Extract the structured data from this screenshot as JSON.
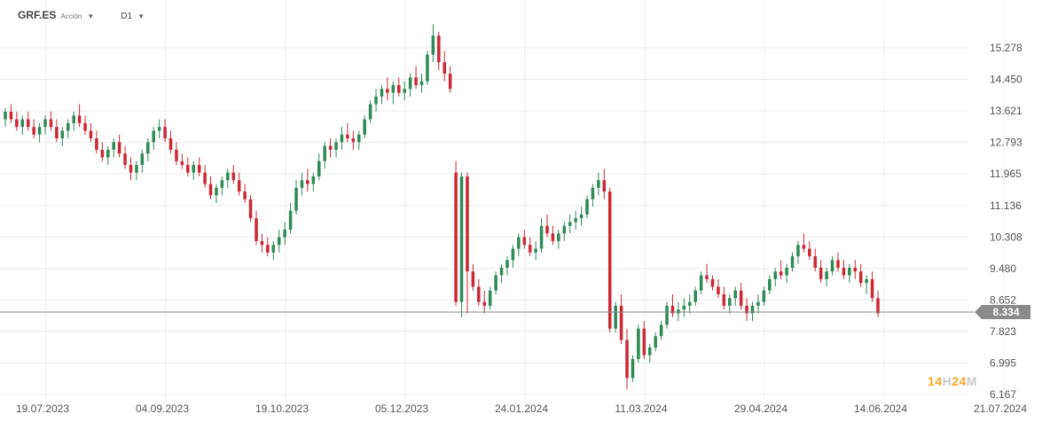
{
  "header": {
    "symbol": "GRF.ES",
    "security_type": "Acción",
    "timeframe": "D1"
  },
  "watermark": {
    "p1": "14",
    "p2": "H",
    "p3": "24",
    "p4": "M"
  },
  "colors": {
    "up": "#2e8b57",
    "down": "#cc2936",
    "grid": "#ececec",
    "price_line": "#888888",
    "price_tag": "#8a8a8a"
  },
  "chart_data": {
    "type": "candlestick",
    "title": "",
    "y_ticks": [
      "15.278",
      "14.450",
      "13.621",
      "12.793",
      "11.965",
      "11.136",
      "10.308",
      "9.480",
      "8.652",
      "7.823",
      "6.995",
      "6.167"
    ],
    "ylim": [
      6.167,
      15.278
    ],
    "x_ticks": [
      "19.07.2023",
      "04.09.2023",
      "19.10.2023",
      "05.12.2023",
      "24.01.2024",
      "11.03.2024",
      "29.04.2024",
      "14.06.2024",
      "21.07.2024"
    ],
    "current_price": "8.334",
    "candles": [
      [
        13.4,
        13.7,
        13.2,
        13.6
      ],
      [
        13.6,
        13.8,
        13.3,
        13.4
      ],
      [
        13.4,
        13.6,
        13.1,
        13.2
      ],
      [
        13.2,
        13.5,
        13.0,
        13.4
      ],
      [
        13.4,
        13.6,
        13.1,
        13.2
      ],
      [
        13.2,
        13.4,
        12.9,
        13.0
      ],
      [
        13.0,
        13.3,
        12.8,
        13.2
      ],
      [
        13.2,
        13.5,
        13.0,
        13.4
      ],
      [
        13.4,
        13.6,
        13.1,
        13.2
      ],
      [
        13.2,
        13.4,
        12.8,
        12.9
      ],
      [
        12.9,
        13.2,
        12.7,
        13.1
      ],
      [
        13.1,
        13.4,
        12.9,
        13.3
      ],
      [
        13.3,
        13.6,
        13.1,
        13.5
      ],
      [
        13.5,
        13.8,
        13.2,
        13.3
      ],
      [
        13.3,
        13.5,
        13.0,
        13.1
      ],
      [
        13.1,
        13.3,
        12.8,
        12.9
      ],
      [
        12.9,
        13.1,
        12.5,
        12.6
      ],
      [
        12.6,
        12.8,
        12.3,
        12.4
      ],
      [
        12.4,
        12.7,
        12.2,
        12.6
      ],
      [
        12.6,
        12.9,
        12.4,
        12.8
      ],
      [
        12.8,
        13.0,
        12.4,
        12.5
      ],
      [
        12.5,
        12.7,
        12.1,
        12.2
      ],
      [
        12.2,
        12.4,
        11.8,
        12.0
      ],
      [
        12.0,
        12.3,
        11.8,
        12.2
      ],
      [
        12.2,
        12.6,
        12.0,
        12.5
      ],
      [
        12.5,
        12.9,
        12.3,
        12.8
      ],
      [
        12.8,
        13.2,
        12.6,
        13.1
      ],
      [
        13.1,
        13.4,
        12.9,
        13.2
      ],
      [
        13.2,
        13.4,
        12.8,
        12.9
      ],
      [
        12.9,
        13.1,
        12.5,
        12.6
      ],
      [
        12.6,
        12.8,
        12.2,
        12.3
      ],
      [
        12.3,
        12.5,
        12.1,
        12.2
      ],
      [
        12.2,
        12.4,
        11.9,
        12.0
      ],
      [
        12.0,
        12.3,
        11.8,
        12.2
      ],
      [
        12.2,
        12.4,
        11.9,
        12.0
      ],
      [
        12.0,
        12.2,
        11.6,
        11.7
      ],
      [
        11.7,
        11.9,
        11.3,
        11.4
      ],
      [
        11.4,
        11.7,
        11.2,
        11.6
      ],
      [
        11.6,
        11.9,
        11.4,
        11.8
      ],
      [
        11.8,
        12.1,
        11.6,
        12.0
      ],
      [
        12.0,
        12.2,
        11.7,
        11.8
      ],
      [
        11.8,
        12.0,
        11.4,
        11.5
      ],
      [
        11.5,
        11.7,
        11.2,
        11.3
      ],
      [
        11.3,
        11.4,
        10.7,
        10.8
      ],
      [
        10.8,
        11.0,
        10.1,
        10.2
      ],
      [
        10.2,
        10.4,
        9.9,
        10.1
      ],
      [
        10.1,
        10.3,
        9.8,
        9.9
      ],
      [
        9.9,
        10.2,
        9.7,
        10.1
      ],
      [
        10.1,
        10.5,
        9.9,
        10.3
      ],
      [
        10.3,
        10.7,
        10.1,
        10.5
      ],
      [
        10.5,
        11.2,
        10.4,
        11.0
      ],
      [
        11.0,
        11.8,
        10.9,
        11.6
      ],
      [
        11.6,
        12.0,
        11.4,
        11.8
      ],
      [
        11.8,
        12.1,
        11.5,
        11.7
      ],
      [
        11.7,
        12.0,
        11.5,
        11.9
      ],
      [
        11.9,
        12.5,
        11.8,
        12.3
      ],
      [
        12.3,
        12.8,
        12.1,
        12.7
      ],
      [
        12.7,
        12.9,
        12.4,
        12.6
      ],
      [
        12.6,
        12.9,
        12.4,
        12.8
      ],
      [
        12.8,
        13.2,
        12.6,
        13.0
      ],
      [
        13.0,
        13.3,
        12.8,
        12.9
      ],
      [
        12.9,
        13.1,
        12.6,
        12.8
      ],
      [
        12.8,
        13.1,
        12.6,
        13.0
      ],
      [
        13.0,
        13.5,
        12.9,
        13.4
      ],
      [
        13.4,
        13.9,
        13.3,
        13.8
      ],
      [
        13.8,
        14.2,
        13.6,
        14.0
      ],
      [
        14.0,
        14.3,
        13.8,
        14.2
      ],
      [
        14.2,
        14.5,
        13.9,
        14.1
      ],
      [
        14.1,
        14.4,
        13.8,
        14.3
      ],
      [
        14.3,
        14.5,
        14.0,
        14.1
      ],
      [
        14.1,
        14.4,
        13.9,
        14.2
      ],
      [
        14.2,
        14.6,
        14.0,
        14.5
      ],
      [
        14.5,
        14.8,
        14.2,
        14.3
      ],
      [
        14.3,
        14.6,
        14.1,
        14.4
      ],
      [
        14.4,
        15.2,
        14.3,
        15.1
      ],
      [
        15.1,
        15.9,
        14.9,
        15.6
      ],
      [
        15.6,
        15.7,
        14.7,
        14.9
      ],
      [
        14.9,
        15.2,
        14.4,
        14.6
      ],
      [
        14.6,
        14.8,
        14.1,
        14.2
      ],
      [
        12.0,
        12.3,
        8.5,
        8.6
      ],
      [
        8.6,
        12.0,
        8.2,
        11.9
      ],
      [
        11.9,
        12.0,
        8.3,
        9.4
      ],
      [
        9.4,
        9.6,
        8.9,
        9.0
      ],
      [
        9.0,
        9.2,
        8.5,
        8.6
      ],
      [
        8.6,
        8.9,
        8.3,
        8.5
      ],
      [
        8.5,
        9.0,
        8.4,
        8.9
      ],
      [
        8.9,
        9.4,
        8.8,
        9.3
      ],
      [
        9.3,
        9.6,
        9.1,
        9.5
      ],
      [
        9.5,
        9.8,
        9.3,
        9.7
      ],
      [
        9.7,
        10.1,
        9.5,
        10.0
      ],
      [
        10.0,
        10.4,
        9.8,
        10.3
      ],
      [
        10.3,
        10.5,
        10.0,
        10.1
      ],
      [
        10.1,
        10.3,
        9.8,
        9.9
      ],
      [
        9.9,
        10.2,
        9.7,
        10.0
      ],
      [
        10.0,
        10.8,
        9.9,
        10.6
      ],
      [
        10.6,
        10.9,
        10.3,
        10.4
      ],
      [
        10.4,
        10.6,
        10.1,
        10.2
      ],
      [
        10.2,
        10.5,
        10.0,
        10.4
      ],
      [
        10.4,
        10.7,
        10.2,
        10.6
      ],
      [
        10.6,
        10.9,
        10.4,
        10.7
      ],
      [
        10.7,
        11.0,
        10.5,
        10.8
      ],
      [
        10.8,
        11.1,
        10.6,
        10.9
      ],
      [
        10.9,
        11.4,
        10.8,
        11.3
      ],
      [
        11.3,
        11.7,
        11.1,
        11.6
      ],
      [
        11.6,
        12.0,
        11.4,
        11.8
      ],
      [
        11.8,
        12.1,
        11.3,
        11.5
      ],
      [
        11.5,
        11.6,
        7.8,
        7.9
      ],
      [
        7.9,
        8.6,
        7.8,
        8.5
      ],
      [
        8.5,
        8.8,
        7.5,
        7.6
      ],
      [
        7.6,
        7.9,
        6.3,
        6.6
      ],
      [
        6.6,
        7.2,
        6.5,
        7.1
      ],
      [
        7.1,
        8.0,
        7.0,
        7.9
      ],
      [
        7.9,
        8.1,
        7.1,
        7.2
      ],
      [
        7.2,
        7.5,
        7.0,
        7.4
      ],
      [
        7.4,
        7.8,
        7.3,
        7.7
      ],
      [
        7.7,
        8.1,
        7.6,
        8.0
      ],
      [
        8.0,
        8.6,
        7.9,
        8.5
      ],
      [
        8.5,
        8.8,
        8.2,
        8.3
      ],
      [
        8.3,
        8.6,
        8.1,
        8.4
      ],
      [
        8.4,
        8.7,
        8.2,
        8.5
      ],
      [
        8.5,
        8.8,
        8.3,
        8.6
      ],
      [
        8.6,
        9.0,
        8.5,
        8.9
      ],
      [
        8.9,
        9.4,
        8.8,
        9.3
      ],
      [
        9.3,
        9.6,
        9.1,
        9.2
      ],
      [
        9.2,
        9.3,
        8.9,
        9.0
      ],
      [
        9.0,
        9.2,
        8.7,
        8.8
      ],
      [
        8.8,
        9.0,
        8.4,
        8.5
      ],
      [
        8.5,
        8.8,
        8.3,
        8.7
      ],
      [
        8.7,
        9.0,
        8.5,
        8.9
      ],
      [
        8.9,
        9.1,
        8.4,
        8.5
      ],
      [
        8.5,
        8.7,
        8.1,
        8.3
      ],
      [
        8.3,
        8.6,
        8.1,
        8.5
      ],
      [
        8.5,
        8.8,
        8.3,
        8.6
      ],
      [
        8.6,
        9.0,
        8.5,
        8.9
      ],
      [
        8.9,
        9.3,
        8.8,
        9.2
      ],
      [
        9.2,
        9.5,
        9.0,
        9.4
      ],
      [
        9.4,
        9.7,
        9.2,
        9.3
      ],
      [
        9.3,
        9.6,
        9.1,
        9.5
      ],
      [
        9.5,
        9.9,
        9.4,
        9.8
      ],
      [
        9.8,
        10.2,
        9.6,
        10.1
      ],
      [
        10.1,
        10.4,
        9.9,
        10.0
      ],
      [
        10.0,
        10.2,
        9.7,
        9.8
      ],
      [
        9.8,
        10.0,
        9.4,
        9.5
      ],
      [
        9.5,
        9.7,
        9.1,
        9.2
      ],
      [
        9.2,
        9.5,
        9.0,
        9.4
      ],
      [
        9.4,
        9.8,
        9.3,
        9.7
      ],
      [
        9.7,
        9.9,
        9.4,
        9.5
      ],
      [
        9.5,
        9.7,
        9.2,
        9.3
      ],
      [
        9.3,
        9.6,
        9.1,
        9.5
      ],
      [
        9.5,
        9.7,
        9.2,
        9.4
      ],
      [
        9.4,
        9.6,
        9.0,
        9.1
      ],
      [
        9.1,
        9.3,
        8.8,
        9.2
      ],
      [
        9.2,
        9.4,
        8.6,
        8.7
      ],
      [
        8.7,
        8.9,
        8.2,
        8.3
      ]
    ]
  }
}
